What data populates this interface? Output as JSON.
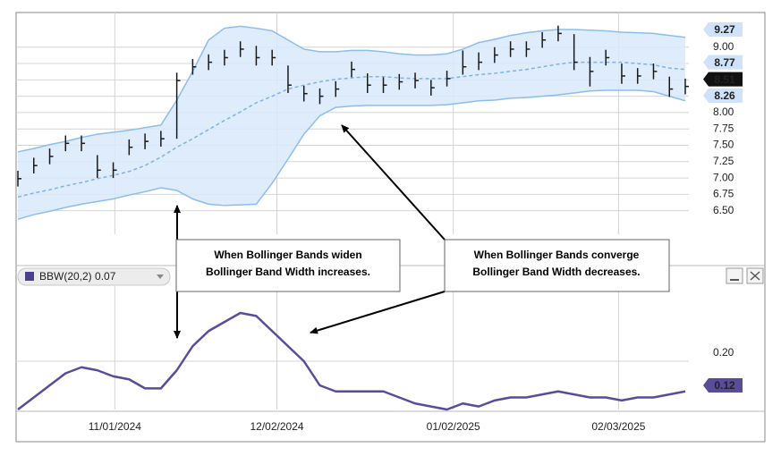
{
  "chart_data": [
    {
      "type": "ohlc",
      "x": [
        0,
        1,
        2,
        3,
        4,
        5,
        6,
        7,
        8,
        9,
        10,
        11,
        12,
        13,
        14,
        15,
        16,
        17,
        18,
        19,
        20,
        21,
        22,
        23,
        24,
        25,
        26,
        27,
        28,
        29,
        30,
        31,
        32,
        33,
        34,
        35,
        36,
        37,
        38,
        39,
        40,
        41,
        42
      ],
      "xlim": [
        0,
        42
      ],
      "high": [
        7.11,
        7.31,
        7.45,
        7.65,
        7.65,
        7.35,
        7.24,
        7.59,
        7.68,
        7.72,
        8.61,
        8.82,
        8.89,
        8.96,
        9.09,
        9.02,
        8.96,
        8.72,
        8.41,
        8.37,
        8.48,
        8.78,
        8.6,
        8.54,
        8.59,
        8.61,
        8.5,
        8.64,
        8.95,
        8.92,
        9.0,
        9.09,
        9.09,
        9.23,
        9.33,
        9.2,
        8.85,
        8.96,
        8.75,
        8.68,
        8.75,
        8.55,
        8.52
      ],
      "low": [
        6.87,
        7.07,
        7.21,
        7.41,
        7.41,
        7.0,
        7.0,
        7.35,
        7.44,
        7.48,
        7.6,
        8.58,
        8.65,
        8.72,
        8.85,
        8.72,
        8.72,
        8.3,
        8.17,
        8.13,
        8.24,
        8.54,
        8.3,
        8.3,
        8.35,
        8.37,
        8.26,
        8.4,
        8.58,
        8.65,
        8.76,
        8.85,
        8.85,
        8.99,
        9.09,
        8.65,
        8.4,
        8.72,
        8.44,
        8.44,
        8.51,
        8.24,
        8.28
      ],
      "close": [
        6.99,
        7.19,
        7.33,
        7.53,
        7.53,
        7.12,
        7.12,
        7.47,
        7.56,
        7.6,
        8.49,
        8.7,
        8.77,
        8.84,
        8.97,
        8.84,
        8.84,
        8.42,
        8.29,
        8.25,
        8.36,
        8.66,
        8.42,
        8.42,
        8.47,
        8.49,
        8.38,
        8.52,
        8.7,
        8.77,
        8.88,
        8.97,
        8.97,
        9.11,
        9.21,
        8.77,
        8.63,
        8.84,
        8.56,
        8.56,
        8.63,
        8.36,
        8.4
      ],
      "upper": [
        7.4,
        7.45,
        7.51,
        7.56,
        7.62,
        7.67,
        7.7,
        7.73,
        7.77,
        7.81,
        8.19,
        8.63,
        9.11,
        9.29,
        9.32,
        9.29,
        9.25,
        9.11,
        8.97,
        8.93,
        8.93,
        8.95,
        8.95,
        8.93,
        8.9,
        8.88,
        8.88,
        8.9,
        8.97,
        9.07,
        9.12,
        9.18,
        9.22,
        9.25,
        9.27,
        9.27,
        9.26,
        9.25,
        9.23,
        9.22,
        9.21,
        9.18,
        9.15
      ],
      "middle": [
        6.71,
        6.77,
        6.82,
        6.88,
        6.93,
        6.99,
        7.04,
        7.1,
        7.19,
        7.32,
        7.47,
        7.6,
        7.74,
        7.88,
        8.01,
        8.15,
        8.25,
        8.36,
        8.42,
        8.47,
        8.51,
        8.53,
        8.55,
        8.55,
        8.53,
        8.52,
        8.52,
        8.52,
        8.55,
        8.58,
        8.6,
        8.63,
        8.66,
        8.7,
        8.74,
        8.77,
        8.77,
        8.77,
        8.77,
        8.75,
        8.73,
        8.68,
        8.66
      ],
      "lower": [
        6.37,
        6.44,
        6.49,
        6.55,
        6.6,
        6.64,
        6.68,
        6.74,
        6.79,
        6.85,
        6.81,
        6.68,
        6.6,
        6.58,
        6.59,
        6.6,
        6.92,
        7.29,
        7.67,
        7.95,
        8.08,
        8.1,
        8.11,
        8.11,
        8.11,
        8.11,
        8.11,
        8.12,
        8.15,
        8.18,
        8.19,
        8.22,
        8.23,
        8.25,
        8.27,
        8.3,
        8.33,
        8.34,
        8.34,
        8.34,
        8.32,
        8.25,
        8.18
      ],
      "bar_color": "#1a1a1a",
      "band_color": "#8cbdf0",
      "band_fill": "#d8e9fb",
      "middle_color": "#7fb2ea",
      "ylim": [
        6.14,
        9.53
      ],
      "yticks": [
        {
          "value": 6.5,
          "label": "6.50"
        },
        {
          "value": 6.75,
          "label": "6.75"
        },
        {
          "value": 7,
          "label": "7.00"
        },
        {
          "value": 7.25,
          "label": "7.25"
        },
        {
          "value": 7.5,
          "label": "7.50"
        },
        {
          "value": 7.75,
          "label": "7.75"
        },
        {
          "value": 8,
          "label": "8.00"
        },
        {
          "value": 8.25,
          "label": "8.25"
        },
        {
          "value": 8.5,
          "label": "8.50"
        },
        {
          "value": 8.75,
          "label": "8.75"
        },
        {
          "value": 9,
          "label": "9.00"
        }
      ],
      "grid": true,
      "markers": [
        {
          "value": 9.27,
          "color": "#cfe2fa",
          "text_color": "#1c2a5a"
        },
        {
          "value": 8.77,
          "color": "#cfe2fa",
          "text_color": "#1c2a5a"
        },
        {
          "value": 8.51,
          "color": "#111111",
          "text_color": "#ffffff"
        },
        {
          "value": 8.26,
          "color": "#cfe2fa",
          "text_color": "#1c2a5a"
        }
      ]
    },
    {
      "type": "line",
      "indicator": "BBW(20,2)",
      "indicator_value": 0.07,
      "x": [
        0,
        1,
        2,
        3,
        4,
        5,
        6,
        7,
        8,
        9,
        10,
        11,
        12,
        13,
        14,
        15,
        16,
        17,
        18,
        19,
        20,
        21,
        22,
        23,
        24,
        25,
        26,
        27,
        28,
        29,
        30,
        31,
        32,
        33,
        34,
        35,
        36,
        37,
        38,
        39,
        40,
        41,
        42
      ],
      "xlim": [
        0,
        42
      ],
      "values": [
        0.04,
        0.08,
        0.12,
        0.16,
        0.18,
        0.17,
        0.15,
        0.14,
        0.11,
        0.11,
        0.17,
        0.25,
        0.3,
        0.33,
        0.36,
        0.35,
        0.3,
        0.25,
        0.2,
        0.12,
        0.1,
        0.1,
        0.1,
        0.1,
        0.08,
        0.06,
        0.05,
        0.04,
        0.06,
        0.05,
        0.07,
        0.08,
        0.08,
        0.09,
        0.1,
        0.09,
        0.08,
        0.08,
        0.07,
        0.08,
        0.08,
        0.09,
        0.1
      ],
      "color": "#5b4b9b",
      "ylim": [
        0.04,
        0.44
      ],
      "yticks": [
        {
          "value": 0.2,
          "label": "0.20"
        }
      ],
      "marker": {
        "value": 0.12,
        "color": "#5b4b9b",
        "text_color": "#ffffff"
      },
      "xticks": [
        {
          "value": 6.1,
          "label": "11/01/2024"
        },
        {
          "value": 16.3,
          "label": "12/02/2024"
        },
        {
          "value": 27.4,
          "label": "01/02/2025"
        },
        {
          "value": 37.8,
          "label": "02/03/2025"
        }
      ]
    }
  ],
  "annotations": [
    {
      "lines": [
        "When Bollinger Bands widen",
        "Bollinger Band Width increases."
      ]
    },
    {
      "lines": [
        "When Bollinger Bands converge",
        "Bollinger Band Width decreases."
      ]
    }
  ]
}
